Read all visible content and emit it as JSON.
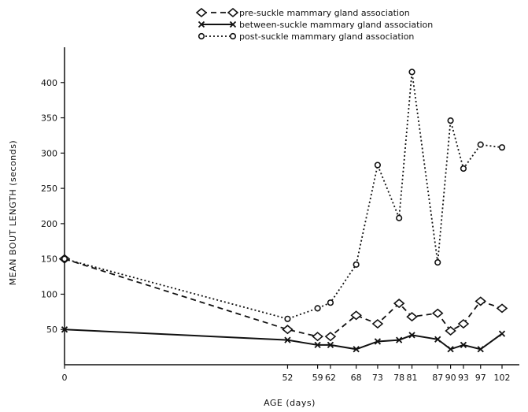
{
  "chart_data": {
    "type": "line",
    "xlabel": "AGE (days)",
    "ylabel": "MEAN BOUT LENGTH (seconds)",
    "x": [
      0,
      52,
      59,
      62,
      68,
      73,
      78,
      81,
      87,
      90,
      93,
      97,
      102
    ],
    "x_ticks": [
      0,
      52,
      59,
      62,
      68,
      73,
      78,
      81,
      87,
      90,
      93,
      97,
      102
    ],
    "y_ticks": [
      50,
      100,
      150,
      200,
      250,
      300,
      350,
      400
    ],
    "ylim": [
      0,
      450
    ],
    "grid": false,
    "legend_position": "top",
    "series": [
      {
        "name": "pre-suckle mammary gland association",
        "marker": "diamond",
        "line_style": "dashed",
        "values": [
          150,
          50,
          40,
          40,
          70,
          58,
          87,
          68,
          73,
          48,
          58,
          90,
          80
        ]
      },
      {
        "name": "between-suckle mammary gland association",
        "marker": "cross",
        "line_style": "solid",
        "values": [
          50,
          35,
          28,
          28,
          22,
          33,
          35,
          42,
          36,
          22,
          28,
          22,
          44
        ]
      },
      {
        "name": "post-suckle mammary gland association",
        "marker": "circle",
        "line_style": "dotted",
        "values": [
          150,
          65,
          80,
          88,
          142,
          283,
          208,
          415,
          145,
          346,
          278,
          312,
          308
        ]
      }
    ]
  }
}
